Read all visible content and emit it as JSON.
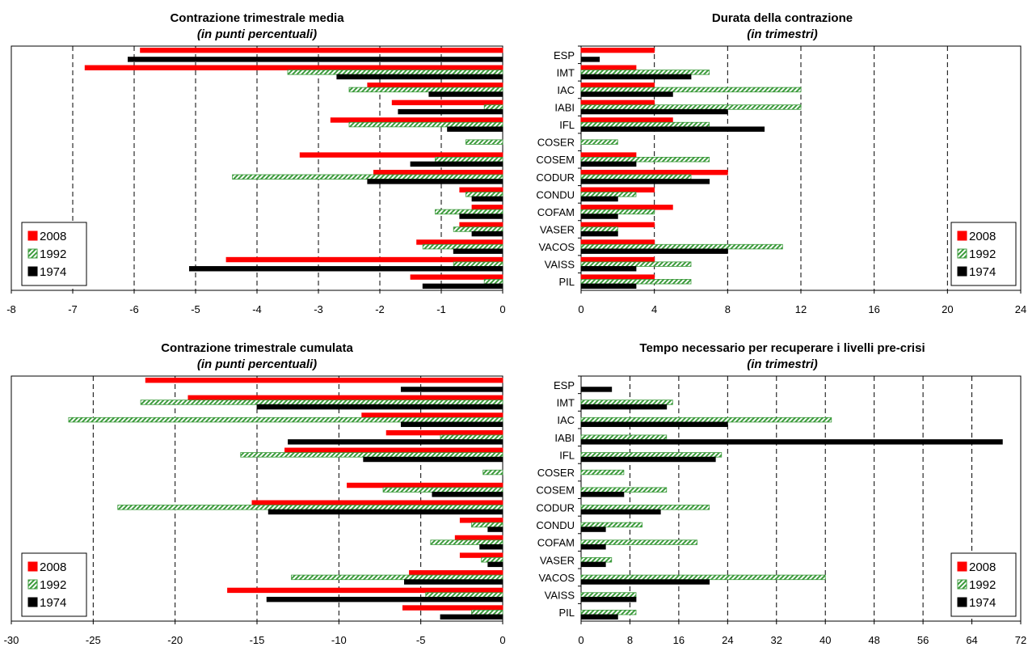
{
  "series_colors": {
    "2008": "#ff0000",
    "1992": "#3c9b3c",
    "1974": "#000000"
  },
  "legend_labels": [
    "2008",
    "1992",
    "1974"
  ],
  "chart_data": [
    {
      "type": "bar",
      "orientation": "horizontal",
      "title": "Contrazione trimestrale media",
      "subtitle": "(in punti percentuali)",
      "categories": [
        "ESP",
        "IMT",
        "IAC",
        "IABI",
        "IFL",
        "COSER",
        "COSEM",
        "CODUR",
        "CONDU",
        "COFAM",
        "VASER",
        "VACOS",
        "VAISS",
        "PIL"
      ],
      "show_category_labels": false,
      "xlim": [
        -8,
        0
      ],
      "xticks": [
        -8,
        -7,
        -6,
        -5,
        -4,
        -3,
        -2,
        -1,
        0
      ],
      "grid": "vertical-dashed",
      "legend_position": "bottom-left",
      "series": [
        {
          "name": "2008",
          "values": [
            -5.9,
            -6.8,
            -2.2,
            -1.8,
            -2.8,
            0,
            -3.3,
            -2.1,
            -0.7,
            -0.5,
            -0.7,
            -1.4,
            -4.5,
            -1.5
          ]
        },
        {
          "name": "1992",
          "values": [
            0,
            -3.5,
            -2.5,
            -0.3,
            -2.5,
            -0.6,
            -1.1,
            -4.4,
            -0.6,
            -1.1,
            -0.8,
            -1.3,
            -0.8,
            -0.3
          ]
        },
        {
          "name": "1974",
          "values": [
            -6.1,
            -2.7,
            -1.2,
            -1.7,
            -0.9,
            0,
            -1.5,
            -2.2,
            -0.5,
            -0.7,
            -0.5,
            -0.8,
            -5.1,
            -1.3
          ]
        }
      ]
    },
    {
      "type": "bar",
      "orientation": "horizontal",
      "title": "Durata della contrazione",
      "subtitle": "(in trimestri)",
      "categories": [
        "ESP",
        "IMT",
        "IAC",
        "IABI",
        "IFL",
        "COSER",
        "COSEM",
        "CODUR",
        "CONDU",
        "COFAM",
        "VASER",
        "VACOS",
        "VAISS",
        "PIL"
      ],
      "show_category_labels": true,
      "xlim": [
        0,
        24
      ],
      "xticks": [
        0,
        4,
        8,
        12,
        16,
        20,
        24
      ],
      "grid": "vertical-dashed",
      "legend_position": "bottom-right",
      "series": [
        {
          "name": "2008",
          "values": [
            4,
            3,
            4,
            4,
            5,
            0,
            3,
            8,
            4,
            5,
            4,
            4,
            4,
            4
          ]
        },
        {
          "name": "1992",
          "values": [
            0,
            7,
            12,
            12,
            7,
            2,
            7,
            6,
            3,
            4,
            2,
            11,
            6,
            6
          ]
        },
        {
          "name": "1974",
          "values": [
            1,
            6,
            5,
            8,
            10,
            0,
            3,
            7,
            2,
            2,
            2,
            8,
            3,
            3
          ]
        }
      ]
    },
    {
      "type": "bar",
      "orientation": "horizontal",
      "title": "Contrazione trimestrale cumulata",
      "subtitle": "(in punti percentuali)",
      "categories": [
        "ESP",
        "IMT",
        "IAC",
        "IABI",
        "IFL",
        "COSER",
        "COSEM",
        "CODUR",
        "CONDU",
        "COFAM",
        "VASER",
        "VACOS",
        "VAISS",
        "PIL"
      ],
      "show_category_labels": false,
      "xlim": [
        -30,
        0
      ],
      "xticks": [
        -30,
        -25,
        -20,
        -15,
        -10,
        -5,
        0
      ],
      "grid": "vertical-dashed",
      "legend_position": "bottom-left",
      "series": [
        {
          "name": "2008",
          "values": [
            -21.8,
            -19.2,
            -8.6,
            -7.1,
            -13.3,
            0,
            -9.5,
            -15.3,
            -2.6,
            -2.9,
            -2.6,
            -5.7,
            -16.8,
            -6.1
          ]
        },
        {
          "name": "1992",
          "values": [
            0,
            -22.1,
            -26.5,
            -3.8,
            -16.0,
            -1.2,
            -7.3,
            -23.5,
            -1.9,
            -4.4,
            -1.3,
            -12.9,
            -4.7,
            -1.9
          ]
        },
        {
          "name": "1974",
          "values": [
            -6.2,
            -15.0,
            -6.2,
            -13.1,
            -8.5,
            0,
            -4.3,
            -14.3,
            -0.9,
            -1.4,
            -0.9,
            -6.0,
            -14.4,
            -3.8
          ]
        }
      ]
    },
    {
      "type": "bar",
      "orientation": "horizontal",
      "title": "Tempo necessario per recuperare i livelli pre-crisi",
      "subtitle": "(in trimestri)",
      "categories": [
        "ESP",
        "IMT",
        "IAC",
        "IABI",
        "IFL",
        "COSER",
        "COSEM",
        "CODUR",
        "CONDU",
        "COFAM",
        "VASER",
        "VACOS",
        "VAISS",
        "PIL"
      ],
      "show_category_labels": true,
      "xlim": [
        0,
        72
      ],
      "xticks": [
        0,
        8,
        16,
        24,
        32,
        40,
        48,
        56,
        64,
        72
      ],
      "grid": "vertical-dashed",
      "legend_position": "bottom-right",
      "series": [
        {
          "name": "2008",
          "values": [
            0,
            0,
            0,
            0,
            0,
            0,
            0,
            0,
            0,
            0,
            0,
            0,
            0,
            0
          ]
        },
        {
          "name": "1992",
          "values": [
            0,
            15,
            41,
            14,
            23,
            7,
            14,
            21,
            10,
            19,
            5,
            40,
            9,
            9
          ]
        },
        {
          "name": "1974",
          "values": [
            5,
            14,
            24,
            69,
            22,
            0,
            7,
            13,
            4,
            4,
            4,
            21,
            9,
            6
          ]
        }
      ]
    }
  ]
}
